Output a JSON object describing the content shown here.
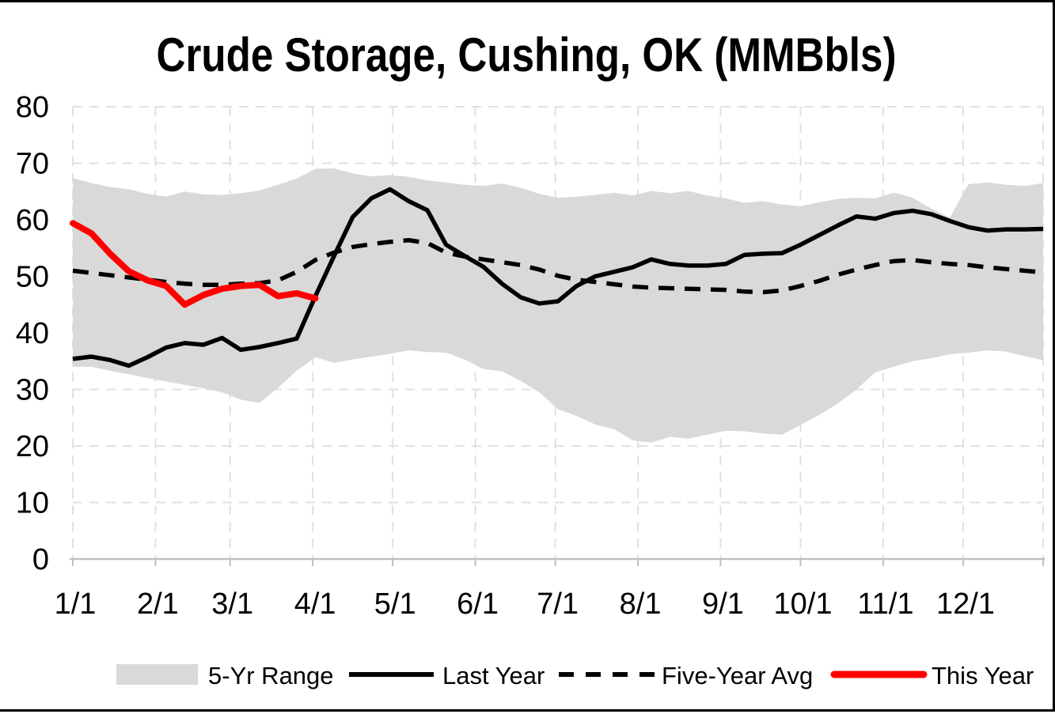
{
  "title": "Crude Storage, Cushing, OK (MMBbls)",
  "colors": {
    "band": "#D9D9D9",
    "last_year": "#000000",
    "five_year_avg": "#000000",
    "this_year": "#FF0000",
    "gridline": "#E1E1E1",
    "axis": "#BFBFBF"
  },
  "legend": {
    "position": "bottom",
    "items": [
      {
        "label": "5-Yr Range",
        "swatch": "band"
      },
      {
        "label": "Last Year",
        "swatch": "solid-line"
      },
      {
        "label": "Five-Year Avg",
        "swatch": "dashed-line"
      },
      {
        "label": "This Year",
        "swatch": "red-line"
      }
    ]
  },
  "chart_data": {
    "type": "line",
    "title": "Crude Storage, Cushing, OK (MMBbls)",
    "xlabel": "",
    "ylabel": "",
    "x_axis": {
      "unit": "day of year",
      "range": [
        0,
        364
      ],
      "tick_labels": [
        "1/1",
        "2/1",
        "3/1",
        "4/1",
        "5/1",
        "6/1",
        "7/1",
        "8/1",
        "9/1",
        "10/1",
        "11/1",
        "12/1"
      ],
      "tick_days": [
        0,
        31,
        59,
        90,
        120,
        151,
        181,
        212,
        243,
        273,
        304,
        334
      ],
      "grid_days": [
        0,
        31,
        59,
        90,
        120,
        151,
        181,
        212,
        243,
        273,
        304,
        334,
        364
      ]
    },
    "y_axis": {
      "range": [
        0,
        80
      ],
      "tick_step": 10,
      "tick_labels": [
        "0",
        "10",
        "20",
        "30",
        "40",
        "50",
        "60",
        "70",
        "80"
      ]
    },
    "grid": "dashed",
    "sample_interval_days": 7,
    "series": [
      {
        "name": "5-Yr Range",
        "type": "band",
        "color": "#D9D9D9",
        "upper": [
          67.4,
          66.5,
          65.8,
          65.4,
          64.6,
          64.1,
          65.0,
          64.5,
          64.4,
          64.7,
          65.2,
          66.2,
          67.3,
          69.0,
          69.1,
          68.2,
          67.7,
          67.9,
          67.6,
          67.0,
          66.6,
          66.2,
          66.0,
          66.4,
          65.7,
          64.6,
          63.9,
          64.1,
          64.4,
          64.8,
          64.3,
          65.1,
          64.7,
          65.1,
          64.3,
          63.8,
          63.0,
          63.3,
          62.7,
          62.4,
          63.1,
          63.7,
          63.9,
          63.8,
          64.8,
          63.9,
          62.0,
          60.4,
          66.3,
          66.6,
          66.2,
          66.0,
          66.5
        ],
        "lower": [
          34.0,
          34.0,
          33.3,
          32.7,
          32.0,
          31.4,
          30.8,
          30.2,
          29.5,
          28.2,
          27.6,
          30.3,
          33.3,
          35.7,
          34.7,
          35.3,
          35.8,
          36.3,
          36.9,
          36.6,
          36.5,
          35.3,
          33.6,
          33.2,
          31.5,
          29.5,
          26.5,
          25.3,
          23.8,
          23.0,
          21.0,
          20.6,
          21.6,
          21.3,
          22.0,
          22.7,
          22.6,
          22.2,
          22.0,
          23.7,
          25.5,
          27.5,
          30.0,
          33.0,
          34.0,
          35.0,
          35.5,
          36.2,
          36.5,
          36.9,
          36.7,
          35.9,
          35.2
        ]
      },
      {
        "name": "Five-Year Avg",
        "type": "line",
        "style": "dashed",
        "color": "#000000",
        "values": [
          51.0,
          50.6,
          50.2,
          49.8,
          49.4,
          49.0,
          48.7,
          48.5,
          48.5,
          48.7,
          48.8,
          49.3,
          50.8,
          52.9,
          54.2,
          55.2,
          55.7,
          56.1,
          56.4,
          55.9,
          54.2,
          53.5,
          53.0,
          52.5,
          52.0,
          51.2,
          50.1,
          49.4,
          49.0,
          48.6,
          48.2,
          48.0,
          47.9,
          47.8,
          47.7,
          47.6,
          47.3,
          47.2,
          47.5,
          48.3,
          49.2,
          50.3,
          51.2,
          52.0,
          52.7,
          52.9,
          52.5,
          52.2,
          52.0,
          51.6,
          51.3,
          51.0,
          50.7
        ]
      },
      {
        "name": "Last Year",
        "type": "line",
        "style": "solid",
        "color": "#000000",
        "values": [
          35.4,
          35.8,
          35.2,
          34.2,
          35.7,
          37.4,
          38.2,
          37.9,
          39.1,
          37.0,
          37.5,
          38.2,
          39.0,
          46.5,
          53.6,
          60.5,
          63.8,
          65.4,
          63.3,
          61.7,
          55.6,
          53.6,
          51.7,
          48.7,
          46.3,
          45.2,
          45.6,
          48.3,
          50.0,
          50.8,
          51.6,
          53.0,
          52.2,
          51.9,
          51.9,
          52.2,
          53.8,
          54.0,
          54.1,
          55.6,
          57.3,
          59.0,
          60.6,
          60.2,
          61.2,
          61.6,
          61.0,
          59.8,
          58.7,
          58.1,
          58.3,
          58.3,
          58.4
        ]
      },
      {
        "name": "This Year",
        "type": "line",
        "style": "solid",
        "color": "#FF0000",
        "values": [
          59.4,
          57.6,
          54.0,
          50.9,
          49.3,
          48.3,
          45.0,
          46.7,
          47.8,
          48.3,
          48.5,
          46.5,
          47.0,
          46.1
        ]
      }
    ]
  }
}
